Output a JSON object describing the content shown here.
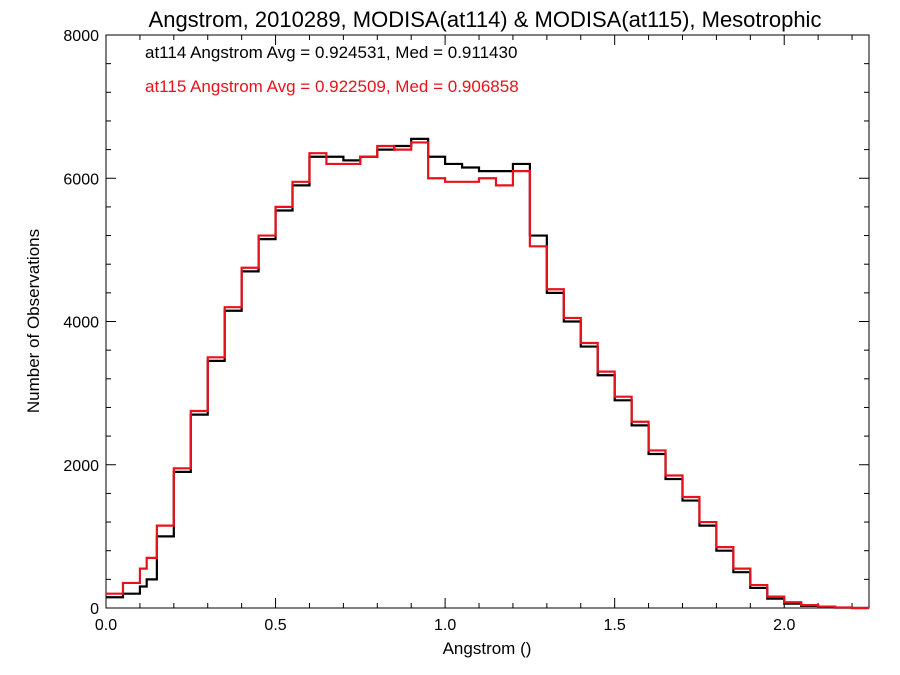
{
  "chart_data": {
    "type": "line",
    "step": true,
    "title": "Angstrom, 2010289, MODISA(at114) & MODISA(at115), Mesotrophic",
    "xlabel": "Angstrom ()",
    "ylabel": "Number of Observations",
    "xlim": [
      0.0,
      2.25
    ],
    "ylim": [
      0,
      8000
    ],
    "xticks": [
      0.0,
      0.5,
      1.0,
      1.5,
      2.0
    ],
    "xtick_labels": [
      "0.0",
      "0.5",
      "1.0",
      "1.5",
      "2.0"
    ],
    "yticks": [
      0,
      2000,
      4000,
      6000,
      8000
    ],
    "ytick_labels": [
      "0",
      "2000",
      "4000",
      "6000",
      "8000"
    ],
    "grid": false,
    "legend_position": "top-left",
    "series": [
      {
        "name": "at114 Angstrom Avg = 0.924531, Med = 0.911430",
        "color": "#000000",
        "x": [
          0.0,
          0.05,
          0.1,
          0.12,
          0.15,
          0.2,
          0.25,
          0.3,
          0.35,
          0.4,
          0.45,
          0.5,
          0.55,
          0.6,
          0.65,
          0.7,
          0.75,
          0.8,
          0.85,
          0.9,
          0.95,
          1.0,
          1.05,
          1.1,
          1.15,
          1.2,
          1.25,
          1.3,
          1.35,
          1.4,
          1.45,
          1.5,
          1.55,
          1.6,
          1.65,
          1.7,
          1.75,
          1.8,
          1.85,
          1.9,
          1.95,
          2.0,
          2.05,
          2.1,
          2.15,
          2.2,
          2.25
        ],
        "y": [
          150,
          200,
          300,
          400,
          1000,
          1900,
          2700,
          3450,
          4150,
          4700,
          5150,
          5550,
          5900,
          6300,
          6300,
          6250,
          6300,
          6400,
          6450,
          6550,
          6300,
          6200,
          6150,
          6100,
          6100,
          6200,
          5200,
          4400,
          4000,
          3650,
          3250,
          2900,
          2550,
          2150,
          1800,
          1500,
          1150,
          800,
          500,
          280,
          130,
          60,
          30,
          15,
          5,
          0,
          0
        ]
      },
      {
        "name": "at115 Angstrom Avg = 0.922509, Med = 0.906858",
        "color": "#e8121c",
        "x": [
          0.0,
          0.05,
          0.1,
          0.12,
          0.15,
          0.2,
          0.25,
          0.3,
          0.35,
          0.4,
          0.45,
          0.5,
          0.55,
          0.6,
          0.65,
          0.7,
          0.75,
          0.8,
          0.85,
          0.9,
          0.95,
          1.0,
          1.05,
          1.1,
          1.15,
          1.2,
          1.25,
          1.3,
          1.35,
          1.4,
          1.45,
          1.5,
          1.55,
          1.6,
          1.65,
          1.7,
          1.75,
          1.8,
          1.85,
          1.9,
          1.95,
          2.0,
          2.05,
          2.1,
          2.15,
          2.2,
          2.25
        ],
        "y": [
          200,
          350,
          550,
          700,
          1150,
          1950,
          2750,
          3500,
          4200,
          4750,
          5200,
          5600,
          5950,
          6350,
          6200,
          6200,
          6300,
          6450,
          6400,
          6500,
          6000,
          5950,
          5950,
          6000,
          5900,
          6100,
          5050,
          4450,
          4050,
          3700,
          3300,
          2950,
          2600,
          2200,
          1850,
          1550,
          1200,
          850,
          550,
          320,
          160,
          80,
          40,
          20,
          8,
          0,
          0
        ]
      }
    ]
  }
}
